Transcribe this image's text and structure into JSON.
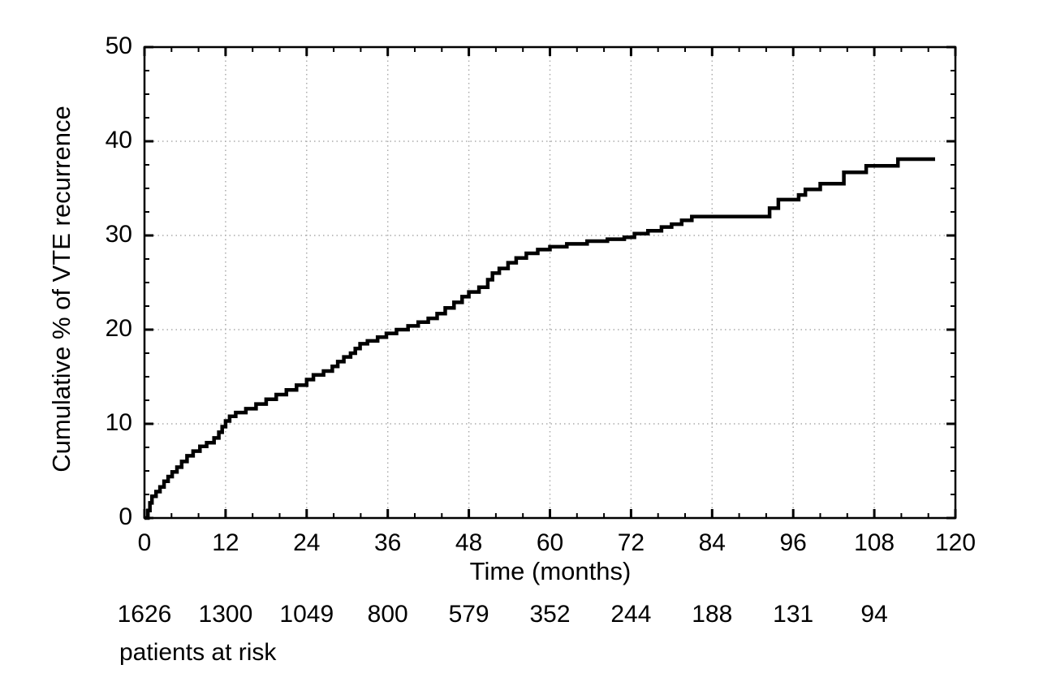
{
  "figure": {
    "background": "#ffffff",
    "text_color": "#000000"
  },
  "chart_data": {
    "type": "line",
    "subtype": "kaplan-meier-step-curve",
    "title": "",
    "xlabel": "Time (months)",
    "ylabel": "Cumulative % of VTE recurrence",
    "xlim": [
      0,
      120
    ],
    "ylim": [
      0,
      50
    ],
    "x_major_ticks": [
      0,
      12,
      24,
      36,
      48,
      60,
      72,
      84,
      96,
      108,
      120
    ],
    "x_minor_step": 4,
    "y_major_ticks": [
      0,
      10,
      20,
      30,
      40,
      50
    ],
    "y_minor_step": 2.5,
    "grid": "dotted-at-major-ticks",
    "legend": "none",
    "line_color": "#000000",
    "grid_color": "#ababab",
    "axis_color": "#000000",
    "series": [
      {
        "name": "Cumulative VTE recurrence",
        "step_mode": "after",
        "start": [
          0,
          0
        ],
        "end_time": 117,
        "points": [
          [
            0.5,
            0.8
          ],
          [
            0.8,
            1.6
          ],
          [
            1.1,
            2.3
          ],
          [
            1.7,
            2.8
          ],
          [
            2.3,
            3.3
          ],
          [
            2.9,
            3.9
          ],
          [
            3.5,
            4.4
          ],
          [
            4.1,
            4.9
          ],
          [
            4.8,
            5.4
          ],
          [
            5.5,
            6.0
          ],
          [
            6.3,
            6.6
          ],
          [
            7.2,
            7.1
          ],
          [
            8.2,
            7.6
          ],
          [
            9.2,
            8.0
          ],
          [
            10.3,
            8.5
          ],
          [
            11.0,
            9.1
          ],
          [
            11.5,
            9.7
          ],
          [
            12.0,
            10.3
          ],
          [
            12.6,
            10.8
          ],
          [
            13.5,
            11.2
          ],
          [
            15.0,
            11.6
          ],
          [
            16.5,
            12.1
          ],
          [
            18.0,
            12.6
          ],
          [
            19.5,
            13.1
          ],
          [
            21.0,
            13.6
          ],
          [
            22.5,
            14.1
          ],
          [
            24.0,
            14.7
          ],
          [
            25.0,
            15.2
          ],
          [
            26.5,
            15.6
          ],
          [
            27.8,
            16.1
          ],
          [
            28.6,
            16.6
          ],
          [
            29.5,
            17.1
          ],
          [
            30.5,
            17.5
          ],
          [
            31.2,
            18.0
          ],
          [
            31.9,
            18.5
          ],
          [
            33.0,
            18.8
          ],
          [
            34.5,
            19.2
          ],
          [
            35.8,
            19.6
          ],
          [
            37.3,
            20.0
          ],
          [
            39.0,
            20.4
          ],
          [
            40.5,
            20.8
          ],
          [
            42.0,
            21.2
          ],
          [
            43.3,
            21.7
          ],
          [
            44.5,
            22.3
          ],
          [
            45.8,
            22.9
          ],
          [
            47.0,
            23.5
          ],
          [
            48.0,
            24.0
          ],
          [
            49.5,
            24.5
          ],
          [
            50.8,
            25.3
          ],
          [
            51.5,
            26.0
          ],
          [
            52.5,
            26.5
          ],
          [
            53.8,
            27.1
          ],
          [
            55.0,
            27.6
          ],
          [
            56.5,
            28.1
          ],
          [
            58.2,
            28.5
          ],
          [
            60.0,
            28.8
          ],
          [
            62.5,
            29.1
          ],
          [
            65.5,
            29.4
          ],
          [
            68.5,
            29.6
          ],
          [
            71.0,
            29.8
          ],
          [
            72.5,
            30.2
          ],
          [
            74.5,
            30.5
          ],
          [
            76.5,
            30.9
          ],
          [
            78.0,
            31.2
          ],
          [
            79.5,
            31.6
          ],
          [
            81.0,
            32.0
          ],
          [
            92.5,
            32.9
          ],
          [
            93.8,
            33.8
          ],
          [
            96.8,
            34.3
          ],
          [
            97.8,
            34.9
          ],
          [
            100.0,
            35.5
          ],
          [
            103.5,
            36.7
          ],
          [
            106.8,
            37.4
          ],
          [
            111.5,
            38.1
          ]
        ]
      }
    ],
    "at_risk": {
      "label": "patients at risk",
      "times": [
        0,
        12,
        24,
        36,
        48,
        60,
        72,
        84,
        96,
        108
      ],
      "counts": [
        1626,
        1300,
        1049,
        800,
        579,
        352,
        244,
        188,
        131,
        94
      ]
    }
  }
}
